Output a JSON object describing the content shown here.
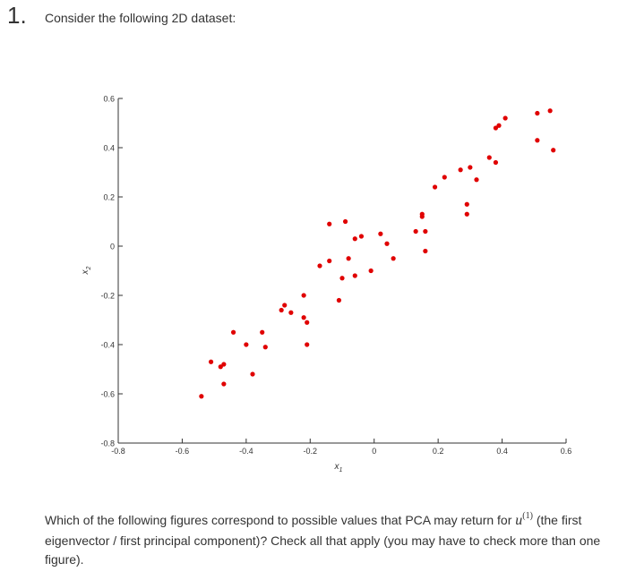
{
  "question": {
    "number": "1.",
    "prompt": "Consider the following 2D dataset:",
    "text_before": "Which of the following figures correspond to possible values that PCA may return for",
    "math_symbol": "u",
    "math_superscript": "(1)",
    "text_after": "(the first eigenvector / first principal component)? Check all that apply (you may have to check more than one figure)."
  },
  "chart_data": {
    "type": "scatter",
    "xlabel": "x1",
    "ylabel": "x2",
    "xlim": [
      -0.8,
      0.6
    ],
    "ylim": [
      -0.8,
      0.6
    ],
    "xticks": [
      "-0.8",
      "-0.6",
      "-0.4",
      "-0.2",
      "0",
      "0.2",
      "0.4",
      "0.6"
    ],
    "yticks": [
      "-0.8",
      "-0.6",
      "-0.4",
      "-0.2",
      "0",
      "0.2",
      "0.4",
      "0.6"
    ],
    "marker_color": "#e00000",
    "points": [
      [
        -0.54,
        -0.61
      ],
      [
        -0.51,
        -0.47
      ],
      [
        -0.48,
        -0.49
      ],
      [
        -0.47,
        -0.48
      ],
      [
        -0.47,
        -0.56
      ],
      [
        -0.44,
        -0.35
      ],
      [
        -0.4,
        -0.4
      ],
      [
        -0.38,
        -0.52
      ],
      [
        -0.35,
        -0.35
      ],
      [
        -0.34,
        -0.41
      ],
      [
        -0.29,
        -0.26
      ],
      [
        -0.28,
        -0.24
      ],
      [
        -0.26,
        -0.27
      ],
      [
        -0.22,
        -0.29
      ],
      [
        -0.22,
        -0.2
      ],
      [
        -0.21,
        -0.31
      ],
      [
        -0.21,
        -0.4
      ],
      [
        -0.17,
        -0.08
      ],
      [
        -0.14,
        -0.06
      ],
      [
        -0.14,
        0.09
      ],
      [
        -0.11,
        -0.22
      ],
      [
        -0.1,
        -0.13
      ],
      [
        -0.09,
        0.1
      ],
      [
        -0.08,
        -0.05
      ],
      [
        -0.06,
        -0.12
      ],
      [
        -0.06,
        0.03
      ],
      [
        -0.04,
        0.04
      ],
      [
        -0.01,
        -0.1
      ],
      [
        0.02,
        0.05
      ],
      [
        0.04,
        0.01
      ],
      [
        0.06,
        -0.05
      ],
      [
        0.13,
        0.06
      ],
      [
        0.15,
        0.13
      ],
      [
        0.15,
        0.12
      ],
      [
        0.16,
        0.06
      ],
      [
        0.16,
        -0.02
      ],
      [
        0.19,
        0.24
      ],
      [
        0.22,
        0.28
      ],
      [
        0.27,
        0.31
      ],
      [
        0.29,
        0.17
      ],
      [
        0.29,
        0.13
      ],
      [
        0.3,
        0.32
      ],
      [
        0.32,
        0.27
      ],
      [
        0.36,
        0.36
      ],
      [
        0.38,
        0.34
      ],
      [
        0.38,
        0.48
      ],
      [
        0.39,
        0.49
      ],
      [
        0.41,
        0.52
      ],
      [
        0.51,
        0.54
      ],
      [
        0.51,
        0.43
      ],
      [
        0.55,
        0.55
      ],
      [
        0.56,
        0.39
      ]
    ]
  }
}
